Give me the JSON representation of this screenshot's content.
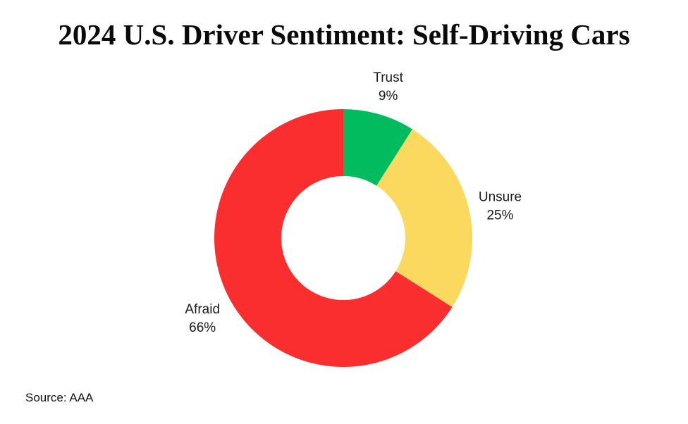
{
  "chart_data": {
    "type": "pie",
    "subtype": "donut",
    "title": "2024 U.S. Driver Sentiment: Self-Driving Cars",
    "categories": [
      "Trust",
      "Unsure",
      "Afraid"
    ],
    "values": [
      9,
      25,
      66
    ],
    "percent_labels": [
      "9%",
      "25%",
      "66%"
    ],
    "colors": [
      "#00BC5E",
      "#FBD95E",
      "#FA2E2E"
    ],
    "start_angle_deg": 0,
    "direction": "clockwise",
    "inner_radius_ratio": 0.48,
    "legend": "none",
    "label_position": "outside",
    "background": "#ffffff",
    "source": "Source: AAA"
  }
}
